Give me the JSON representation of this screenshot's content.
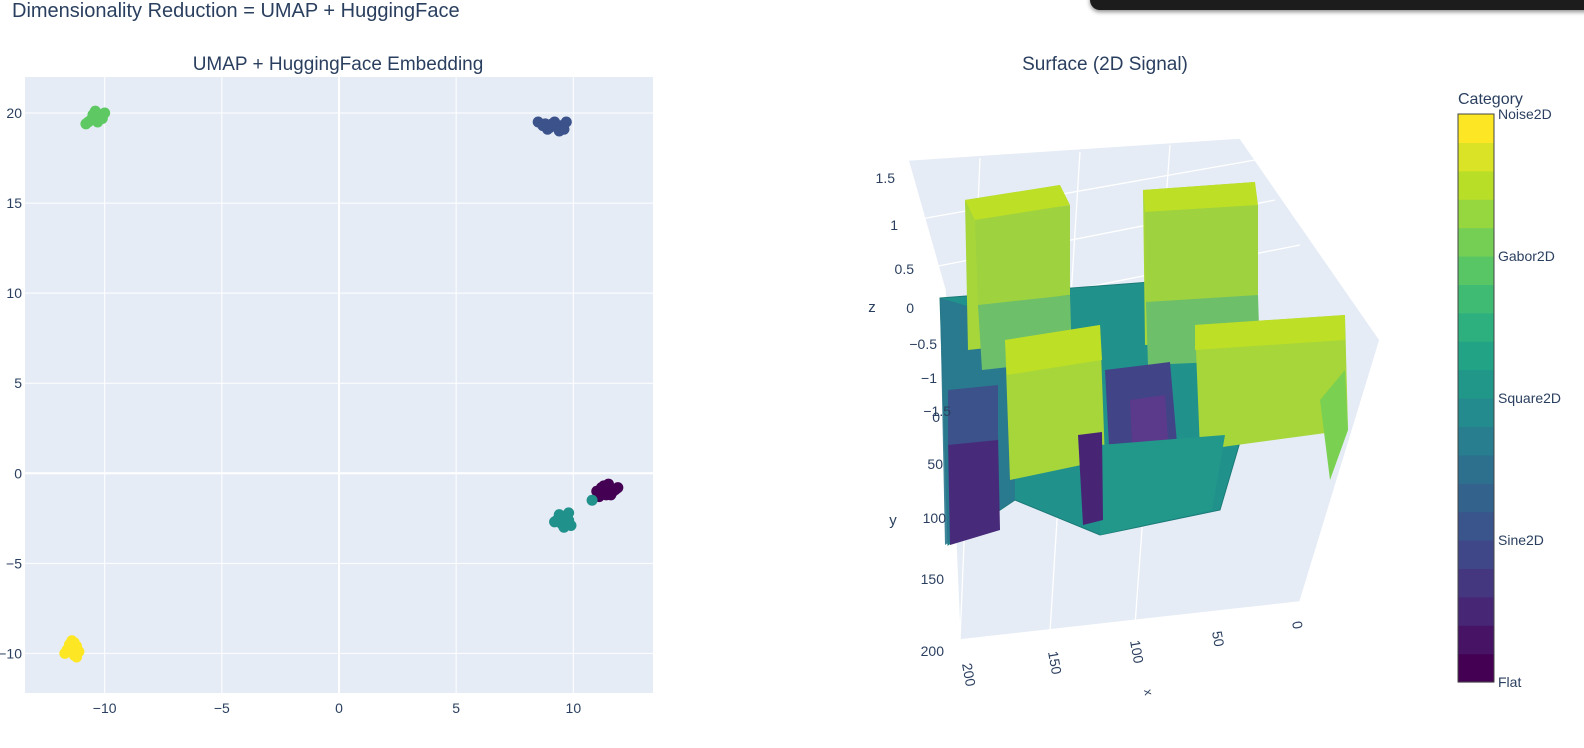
{
  "page": {
    "title": "Dimensionality Reduction = UMAP + HuggingFace"
  },
  "colors": {
    "Flat": "#440154",
    "Sine2D": "#3b528b",
    "Square2D": "#21918c",
    "Gabor2D": "#5ec962",
    "Noise2D": "#fde725",
    "plot_bg": "#e5ecf6",
    "grid": "#ffffff",
    "text": "#2a3f5f"
  },
  "chart_data": [
    {
      "type": "scatter",
      "title": "UMAP + HuggingFace Embedding",
      "xlabel": "",
      "ylabel": "",
      "xlim": [
        -13.4,
        13.4
      ],
      "ylim": [
        -12.2,
        22
      ],
      "xticks": [
        -10,
        -5,
        0,
        5,
        10
      ],
      "yticks": [
        -10,
        -5,
        0,
        5,
        10,
        15,
        20
      ],
      "grid": true,
      "series": [
        {
          "category": "Flat",
          "x": [
            11.2,
            11.5,
            11.8,
            11.0,
            11.4,
            11.7,
            11.3,
            11.6,
            11.1,
            11.9,
            11.5,
            11.2
          ],
          "y": [
            -0.8,
            -0.6,
            -0.9,
            -1.0,
            -1.2,
            -1.0,
            -0.7,
            -1.2,
            -1.3,
            -0.8,
            -0.9,
            -1.1
          ]
        },
        {
          "category": "Sine2D",
          "x": [
            8.5,
            8.8,
            9.0,
            9.2,
            9.5,
            9.7,
            8.9,
            9.3,
            9.6,
            9.1,
            8.7,
            9.4
          ],
          "y": [
            19.5,
            19.4,
            19.2,
            19.5,
            19.3,
            19.5,
            19.1,
            19.3,
            19.1,
            19.4,
            19.3,
            19.0
          ]
        },
        {
          "category": "Square2D",
          "x": [
            9.4,
            9.6,
            9.8,
            9.5,
            9.7,
            9.3,
            9.9,
            9.6,
            9.2,
            10.8,
            9.5,
            9.8
          ],
          "y": [
            -2.3,
            -2.5,
            -2.2,
            -2.8,
            -2.7,
            -2.6,
            -2.9,
            -3.0,
            -2.7,
            -1.5,
            -2.4,
            -2.6
          ]
        },
        {
          "category": "Gabor2D",
          "x": [
            -10.4,
            -10.2,
            -10.6,
            -10.0,
            -10.3,
            -10.8,
            -10.5,
            -10.1,
            -10.7,
            -10.4
          ],
          "y": [
            20.1,
            19.8,
            19.6,
            20.0,
            19.5,
            19.4,
            19.9,
            19.7,
            19.5,
            20.1
          ]
        },
        {
          "category": "Noise2D",
          "x": [
            -11.4,
            -11.2,
            -11.6,
            -11.3,
            -11.5,
            -11.1,
            -11.4,
            -11.7,
            -11.3,
            -11.5,
            -11.2,
            -11.4
          ],
          "y": [
            -9.3,
            -9.6,
            -9.8,
            -10.1,
            -9.5,
            -9.9,
            -9.7,
            -10.0,
            -9.4,
            -9.6,
            -10.2,
            -9.8
          ]
        }
      ]
    },
    {
      "type": "surface",
      "title": "Surface (2D Signal)",
      "z_ticks": [
        "1.5",
        "1",
        "0.5",
        "0",
        "−0.5",
        "−1",
        "−1.5"
      ],
      "y_ticks": [
        "0",
        "50",
        "100",
        "150",
        "200"
      ],
      "x_ticks": [
        "0",
        "50",
        "100",
        "150",
        "200"
      ],
      "axis_titles": {
        "x": "x",
        "y": "y",
        "z": "z"
      },
      "z_range": [
        -1.5,
        1.5
      ]
    },
    {
      "type": "colorbar",
      "title": "Category",
      "tick_labels": [
        "Noise2D",
        "Gabor2D",
        "Square2D",
        "Sine2D",
        "Flat"
      ],
      "tick_values": [
        4,
        3,
        2,
        1,
        0
      ],
      "range": [
        0,
        4
      ],
      "colorscale": [
        "#440154",
        "#482475",
        "#414487",
        "#355f8d",
        "#2a788e",
        "#21918c",
        "#22a884",
        "#44bf70",
        "#7ad151",
        "#bddf26",
        "#fde725"
      ]
    }
  ]
}
